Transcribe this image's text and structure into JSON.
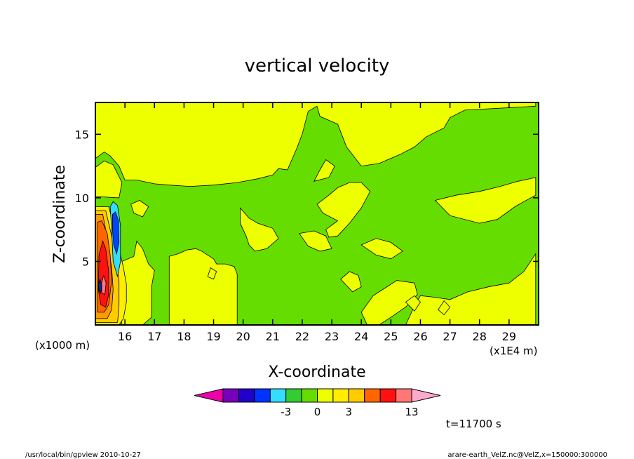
{
  "chart_data": {
    "type": "heatmap",
    "title": "vertical velocity",
    "xlabel": "X-coordinate",
    "ylabel": "Z-coordinate",
    "x_unit_left": "(x1000 m)",
    "x_unit_right": "(x1E4 m)",
    "xlim": [
      15.0,
      30.0
    ],
    "ylim": [
      0.0,
      17.5
    ],
    "x_ticks": [
      "16",
      "17",
      "18",
      "19",
      "20",
      "21",
      "22",
      "23",
      "24",
      "25",
      "26",
      "27",
      "28",
      "29"
    ],
    "y_ticks": [
      "5",
      "10",
      "15"
    ],
    "x_tick_values": [
      16,
      17,
      18,
      19,
      20,
      21,
      22,
      23,
      24,
      25,
      26,
      27,
      28,
      29
    ],
    "y_tick_values": [
      5,
      10,
      15
    ],
    "background_level_color": "#66dd00",
    "regions": [
      {
        "level": "positive_small",
        "color": "#eeff00",
        "polygons": [
          [
            [
              15.0,
              17.5
            ],
            [
              29.9,
              17.5
            ],
            [
              29.9,
              17.2
            ],
            [
              27.5,
              16.9
            ],
            [
              27.0,
              16.3
            ],
            [
              26.8,
              15.5
            ],
            [
              26.2,
              14.8
            ],
            [
              25.8,
              14.0
            ],
            [
              25.3,
              13.4
            ],
            [
              24.6,
              12.7
            ],
            [
              24.0,
              12.5
            ],
            [
              23.5,
              14.0
            ],
            [
              23.2,
              15.8
            ],
            [
              22.6,
              16.4
            ],
            [
              22.5,
              17.2
            ],
            [
              22.2,
              16.8
            ],
            [
              22.0,
              15.0
            ],
            [
              21.8,
              13.8
            ],
            [
              21.5,
              12.2
            ],
            [
              21.2,
              12.3
            ],
            [
              21.0,
              11.8
            ],
            [
              20.5,
              11.5
            ],
            [
              19.8,
              11.2
            ],
            [
              19.0,
              11.0
            ],
            [
              18.2,
              10.9
            ],
            [
              17.5,
              11.0
            ],
            [
              17.0,
              11.1
            ],
            [
              16.4,
              11.4
            ],
            [
              16.0,
              11.4
            ],
            [
              15.8,
              12.5
            ],
            [
              15.5,
              13.3
            ],
            [
              15.3,
              13.6
            ],
            [
              15.0,
              13.1
            ]
          ],
          [
            [
              15.0,
              10.1
            ],
            [
              15.8,
              10.0
            ],
            [
              15.9,
              11.2
            ],
            [
              15.6,
              12.6
            ],
            [
              15.3,
              12.9
            ],
            [
              15.0,
              12.4
            ]
          ],
          [
            [
              26.5,
              9.8
            ],
            [
              27.2,
              10.2
            ],
            [
              28.0,
              10.5
            ],
            [
              28.7,
              10.9
            ],
            [
              29.3,
              11.3
            ],
            [
              29.9,
              11.6
            ],
            [
              29.9,
              10.2
            ],
            [
              29.5,
              9.7
            ],
            [
              29.2,
              9.3
            ],
            [
              28.6,
              8.3
            ],
            [
              28.0,
              8.0
            ],
            [
              27.0,
              8.6
            ]
          ],
          [
            [
              17.5,
              5.4
            ],
            [
              17.8,
              5.6
            ],
            [
              18.1,
              5.9
            ],
            [
              18.4,
              6.0
            ],
            [
              18.6,
              5.8
            ],
            [
              18.8,
              5.5
            ],
            [
              19.0,
              5.2
            ],
            [
              19.1,
              4.8
            ],
            [
              19.4,
              4.8
            ],
            [
              19.7,
              4.6
            ],
            [
              19.8,
              4.0
            ],
            [
              19.8,
              0.0
            ],
            [
              17.5,
              0.0
            ]
          ],
          [
            [
              19.9,
              9.2
            ],
            [
              20.2,
              8.4
            ],
            [
              20.5,
              8.0
            ],
            [
              21.0,
              7.6
            ],
            [
              21.2,
              6.8
            ],
            [
              20.8,
              6.0
            ],
            [
              20.4,
              5.8
            ],
            [
              20.2,
              6.3
            ],
            [
              20.1,
              7.0
            ],
            [
              19.9,
              8.0
            ]
          ],
          [
            [
              22.5,
              9.5
            ],
            [
              22.9,
              10.2
            ],
            [
              23.2,
              10.8
            ],
            [
              23.6,
              11.2
            ],
            [
              24.0,
              11.2
            ],
            [
              24.3,
              10.5
            ],
            [
              24.0,
              9.2
            ],
            [
              23.6,
              8.0
            ],
            [
              23.2,
              7.0
            ],
            [
              22.9,
              6.9
            ],
            [
              22.8,
              7.5
            ],
            [
              23.2,
              8.2
            ],
            [
              22.7,
              8.8
            ]
          ],
          [
            [
              22.4,
              11.3
            ],
            [
              22.9,
              11.6
            ],
            [
              23.1,
              12.5
            ],
            [
              22.8,
              13.0
            ],
            [
              22.6,
              12.2
            ]
          ],
          [
            [
              26.4,
              2.2
            ],
            [
              27.0,
              2.0
            ],
            [
              27.6,
              2.6
            ],
            [
              28.3,
              3.0
            ],
            [
              29.0,
              3.3
            ],
            [
              29.5,
              4.2
            ],
            [
              29.9,
              5.6
            ],
            [
              29.9,
              0.0
            ],
            [
              25.5,
              0.0
            ],
            [
              25.8,
              1.5
            ],
            [
              26.0,
              2.3
            ]
          ],
          [
            [
              24.0,
              1.0
            ],
            [
              24.4,
              2.3
            ],
            [
              24.8,
              2.9
            ],
            [
              25.2,
              3.5
            ],
            [
              25.8,
              3.3
            ],
            [
              25.9,
              2.4
            ],
            [
              25.5,
              1.4
            ],
            [
              25.0,
              0.6
            ],
            [
              24.6,
              0.0
            ],
            [
              24.2,
              0.0
            ]
          ],
          [
            [
              21.9,
              7.2
            ],
            [
              22.4,
              7.4
            ],
            [
              22.8,
              7.0
            ],
            [
              23.0,
              6.0
            ],
            [
              22.6,
              5.8
            ],
            [
              22.2,
              6.2
            ]
          ],
          [
            [
              24.0,
              6.3
            ],
            [
              24.5,
              6.8
            ],
            [
              25.0,
              6.5
            ],
            [
              25.4,
              5.8
            ],
            [
              25.0,
              5.2
            ],
            [
              24.5,
              5.5
            ]
          ],
          [
            [
              23.3,
              3.6
            ],
            [
              23.6,
              4.2
            ],
            [
              23.9,
              3.9
            ],
            [
              24.0,
              3.0
            ],
            [
              23.7,
              2.6
            ]
          ],
          [
            [
              15.7,
              4.8
            ],
            [
              16.3,
              5.4
            ],
            [
              16.4,
              6.6
            ],
            [
              16.6,
              6.0
            ],
            [
              16.8,
              4.8
            ],
            [
              17.0,
              4.3
            ],
            [
              16.9,
              3.0
            ],
            [
              16.9,
              0.6
            ],
            [
              16.6,
              0.0
            ],
            [
              15.9,
              0.0
            ]
          ],
          [
            [
              16.2,
              9.5
            ],
            [
              16.5,
              9.8
            ],
            [
              16.8,
              9.3
            ],
            [
              16.6,
              8.5
            ],
            [
              16.3,
              8.8
            ]
          ],
          [
            [
              25.5,
              1.8
            ],
            [
              25.8,
              2.3
            ],
            [
              26.0,
              1.8
            ],
            [
              25.8,
              1.1
            ]
          ],
          [
            [
              26.6,
              1.2
            ],
            [
              26.8,
              1.9
            ],
            [
              27.0,
              1.4
            ],
            [
              26.8,
              0.8
            ]
          ],
          [
            [
              18.8,
              3.8
            ],
            [
              18.9,
              4.5
            ],
            [
              19.1,
              4.2
            ],
            [
              19.0,
              3.6
            ]
          ]
        ]
      },
      {
        "level": "1",
        "color": "#ffee00",
        "polygons": [
          [
            [
              15.0,
              9.3
            ],
            [
              15.45,
              9.3
            ],
            [
              15.55,
              8.4
            ],
            [
              15.7,
              7.3
            ],
            [
              15.8,
              6.0
            ],
            [
              15.95,
              4.5
            ],
            [
              16.05,
              3.2
            ],
            [
              16.05,
              1.8
            ],
            [
              15.95,
              0.5
            ],
            [
              15.8,
              0.0
            ],
            [
              15.0,
              0.0
            ]
          ]
        ]
      },
      {
        "level": "2",
        "color": "#ffcc00",
        "polygons": [
          [
            [
              15.0,
              9.0
            ],
            [
              15.35,
              9.0
            ],
            [
              15.45,
              8.0
            ],
            [
              15.6,
              6.5
            ],
            [
              15.7,
              5.0
            ],
            [
              15.8,
              3.5
            ],
            [
              15.8,
              1.5
            ],
            [
              15.75,
              0.2
            ],
            [
              15.0,
              0.2
            ]
          ]
        ]
      },
      {
        "level": "3",
        "color": "#ff9900",
        "polygons": [
          [
            [
              15.0,
              8.7
            ],
            [
              15.25,
              8.7
            ],
            [
              15.35,
              7.5
            ],
            [
              15.45,
              6.0
            ],
            [
              15.55,
              4.5
            ],
            [
              15.6,
              2.8
            ],
            [
              15.55,
              1.2
            ],
            [
              15.4,
              0.5
            ],
            [
              15.0,
              0.5
            ]
          ]
        ]
      },
      {
        "level": "5",
        "color": "#ff6600",
        "polygons": [
          [
            [
              15.08,
              8.1
            ],
            [
              15.22,
              8.2
            ],
            [
              15.4,
              7.2
            ],
            [
              15.5,
              5.5
            ],
            [
              15.55,
              3.5
            ],
            [
              15.45,
              1.6
            ],
            [
              15.3,
              1.0
            ],
            [
              15.08,
              1.0
            ]
          ]
        ]
      },
      {
        "level": "9",
        "color": "#ff1111",
        "polygons": [
          [
            [
              15.12,
              5.5
            ],
            [
              15.25,
              6.6
            ],
            [
              15.35,
              6.0
            ],
            [
              15.45,
              4.2
            ],
            [
              15.45,
              2.4
            ],
            [
              15.35,
              1.4
            ],
            [
              15.18,
              1.6
            ],
            [
              15.1,
              2.8
            ]
          ]
        ]
      },
      {
        "level": "11",
        "color": "#ff7777",
        "polygons": [
          [
            [
              15.2,
              3.2
            ],
            [
              15.28,
              3.9
            ],
            [
              15.36,
              3.3
            ],
            [
              15.32,
              2.4
            ],
            [
              15.22,
              2.5
            ]
          ]
        ]
      },
      {
        "level": "-1",
        "color": "#33ddff",
        "polygons": [
          [
            [
              15.5,
              9.3
            ],
            [
              15.6,
              9.7
            ],
            [
              15.75,
              9.4
            ],
            [
              15.85,
              7.8
            ],
            [
              15.85,
              5.0
            ],
            [
              15.75,
              3.8
            ],
            [
              15.6,
              5.0
            ],
            [
              15.55,
              7.5
            ]
          ]
        ]
      },
      {
        "level": "-2",
        "color": "#0044ff",
        "polygons": [
          [
            [
              15.58,
              8.7
            ],
            [
              15.68,
              8.9
            ],
            [
              15.78,
              8.2
            ],
            [
              15.8,
              6.5
            ],
            [
              15.72,
              5.6
            ],
            [
              15.62,
              6.3
            ],
            [
              15.58,
              7.5
            ]
          ]
        ]
      },
      {
        "level": "-3",
        "color": "#0022aa",
        "polygons": [
          [
            [
              15.1,
              3.2
            ],
            [
              15.16,
              3.6
            ],
            [
              15.22,
              3.1
            ],
            [
              15.18,
              2.5
            ],
            [
              15.12,
              2.7
            ]
          ]
        ]
      }
    ],
    "colorbar": {
      "levels": [
        "-3",
        "0",
        "3",
        "13"
      ],
      "colors": [
        "#ee00aa",
        "#7700bb",
        "#2200cc",
        "#0033ff",
        "#33ddff",
        "#33cc33",
        "#66dd00",
        "#eeff00",
        "#ffee00",
        "#ffcc00",
        "#ff6600",
        "#ff1111",
        "#ff7777",
        "#ffaacc"
      ],
      "colors_note": "left arrow, 12 boxes, right arrow"
    },
    "time_label": "t=11700 s",
    "footer_left": "/usr/local/bin/gpview   2010-10-27",
    "footer_right": "arare-earth_VelZ.nc@VelZ,x=150000:300000"
  }
}
